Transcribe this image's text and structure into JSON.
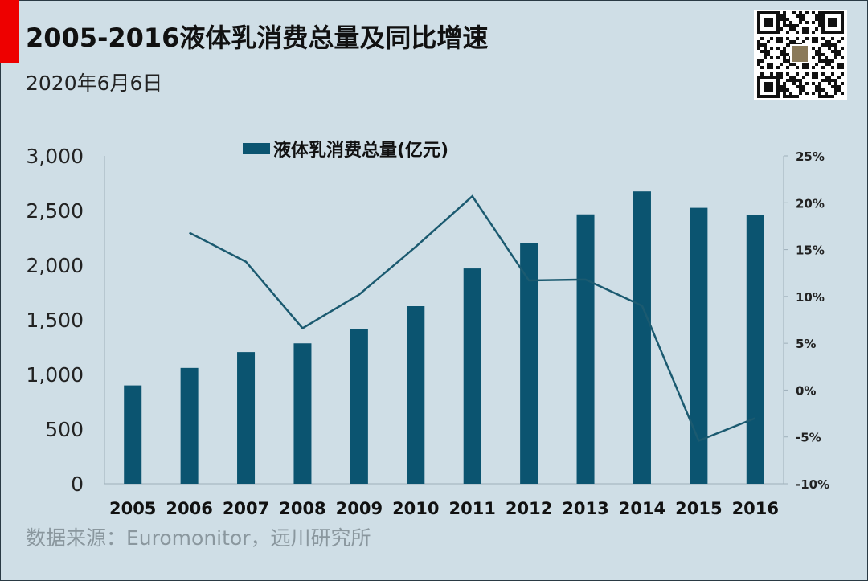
{
  "header": {
    "title": "2005-2016液体乳消费总量及同比增速",
    "date": "2020年6月6日"
  },
  "footer": {
    "source": "数据来源：Euromonitor，远川研究所"
  },
  "colors": {
    "accent": "#ee0000",
    "bar": "#0b5470",
    "line": "#1b5a70",
    "background": "#cfdee6"
  },
  "chart_data": {
    "type": "bar+line",
    "title": "2005-2016液体乳消费总量及同比增速",
    "categories": [
      "2005",
      "2006",
      "2007",
      "2008",
      "2009",
      "2010",
      "2011",
      "2012",
      "2013",
      "2014",
      "2015",
      "2016"
    ],
    "series": [
      {
        "name": "液体乳消费总量(亿元)",
        "type": "bar",
        "axis": "left",
        "values": [
          900,
          1060,
          1205,
          1285,
          1415,
          1625,
          1970,
          2205,
          2465,
          2675,
          2525,
          2460
        ]
      },
      {
        "type": "line",
        "axis": "right",
        "unit": "%",
        "values": [
          null,
          16.8,
          13.7,
          6.6,
          10.2,
          15.3,
          20.7,
          11.7,
          11.8,
          9.0,
          -5.4,
          -3.0
        ]
      }
    ],
    "y_left": {
      "range": [
        0,
        3000
      ],
      "ticks": [
        "0",
        "500",
        "1,000",
        "1,500",
        "2,000",
        "2,500",
        "3,000"
      ]
    },
    "y_right": {
      "range": [
        -10,
        25
      ],
      "ticks": [
        "-10%",
        "-5%",
        "0%",
        "5%",
        "10%",
        "15%",
        "20%",
        "25%"
      ]
    },
    "legend": "top-center",
    "grid": false
  }
}
